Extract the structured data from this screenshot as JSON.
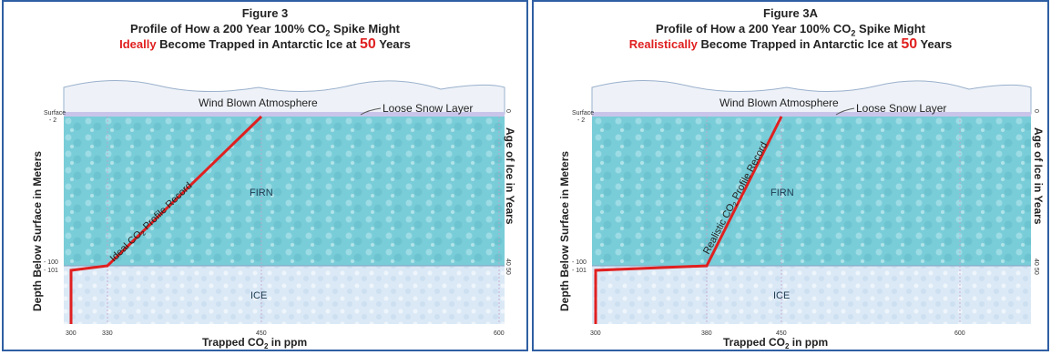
{
  "panels": [
    {
      "figure_label": "Figure 3",
      "title_line2_a": "Profile of How a 200 Year 100% CO",
      "title_line2_sub": "2",
      "title_line2_b": " Spike Might",
      "title_line3_emph": "Ideally",
      "title_line3_mid": " Become Trapped in Antarctic Ice at ",
      "title_line3_num": "50",
      "title_line3_end": " Years",
      "atmosphere_label": "Wind Blown Atmosphere",
      "snow_label": "Loose Snow Layer",
      "firn_label": "FIRN",
      "ice_label": "ICE",
      "profile_label_a": "Ideal CO",
      "profile_label_sub": "2",
      "profile_label_b": " Profile Record",
      "depth_axis_label": "Depth Below Surface in Meters",
      "age_axis_label": "Age of Ice in Years",
      "x_axis_label_a": "Trapped CO",
      "x_axis_label_sub": "2",
      "x_axis_label_b": " in ppm",
      "left_ticks": {
        "surface": "Surface",
        "d2": "- 2",
        "d100": "- 100",
        "d101": "- 101"
      },
      "right_ticks": {
        "a0": "0",
        "a40": "40",
        "a50": "50"
      },
      "x_ticks": [
        "300",
        "330",
        "450",
        "600"
      ]
    },
    {
      "figure_label": "Figure 3A",
      "title_line2_a": "Profile of How a 200 Year 100% CO",
      "title_line2_sub": "2",
      "title_line2_b": " Spike Might",
      "title_line3_emph": "Realistically",
      "title_line3_mid": " Become Trapped in Antarctic Ice at ",
      "title_line3_num": "50",
      "title_line3_end": " Years",
      "atmosphere_label": "Wind Blown Atmosphere",
      "snow_label": "Loose Snow Layer",
      "firn_label": "FIRN",
      "ice_label": "ICE",
      "profile_label_a": "Realistic CO",
      "profile_label_sub": "2",
      "profile_label_b": " Profile Record",
      "depth_axis_label": "Depth Below Surface in Meters",
      "age_axis_label": "Age of Ice in Years",
      "x_axis_label_a": "Trapped CO",
      "x_axis_label_sub": "2",
      "x_axis_label_b": " in ppm",
      "left_ticks": {
        "surface": "Surface",
        "d2": "- 2",
        "d100": "- 100",
        "d101": "- 101"
      },
      "right_ticks": {
        "a0": "0",
        "a40": "40",
        "a50": "50"
      },
      "x_ticks": [
        "300",
        "380",
        "450",
        "600"
      ]
    }
  ],
  "colors": {
    "frame": "#2f5fa3",
    "firn": "#79cdd8",
    "ice": "#dbe9f6",
    "snow": "#c9c5ea",
    "atmosphere": "#eef2f8",
    "profile": "#e02020",
    "accent_red": "#e02020"
  }
}
